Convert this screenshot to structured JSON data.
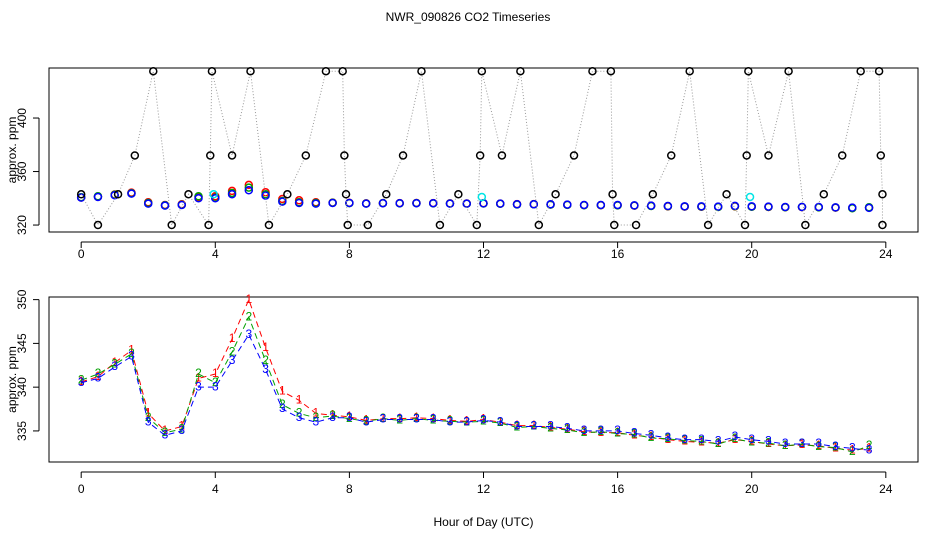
{
  "chart_data": [
    {
      "type": "scatter",
      "title": "NWR_090826  CO2 Timeseries",
      "ylabel": "approx. ppm",
      "xlim": [
        -0.96,
        24.96
      ],
      "xticks": [
        0,
        4,
        8,
        12,
        16,
        20,
        24
      ],
      "ylim": [
        314.8,
        437.4
      ],
      "yticks": [
        320,
        360,
        400
      ],
      "x": [
        0,
        0.5,
        1,
        1.5,
        2,
        2.5,
        3,
        3.5,
        4,
        4.5,
        5,
        5.5,
        6,
        6.5,
        7,
        7.5,
        8,
        8.5,
        9,
        9.5,
        10,
        10.5,
        11,
        11.5,
        12,
        12.5,
        13,
        13.5,
        14,
        14.5,
        15,
        15.5,
        16,
        16.5,
        17,
        17.5,
        18,
        18.5,
        19,
        19.5,
        20,
        20.5,
        21,
        21.5,
        22,
        22.5,
        23,
        23.5
      ],
      "series": [
        {
          "color": "#ff0000",
          "values": [
            340.6,
            341.2,
            342.8,
            344.2,
            337,
            335,
            335.5,
            341,
            341.5,
            345.5,
            350,
            344.5,
            339.5,
            338.5,
            337,
            336.8,
            336.6,
            336.2,
            336.4,
            336.4,
            336.5,
            336.4,
            336.2,
            336.1,
            336.3,
            336,
            335.6,
            335.6,
            335.4,
            335.2,
            334.9,
            334.8,
            334.8,
            334.5,
            334.3,
            334,
            333.8,
            333.7,
            333.6,
            334,
            333.8,
            333.5,
            333.3,
            333.4,
            333.3,
            333,
            332.8,
            333
          ]
        },
        {
          "color": "#00a000",
          "values": [
            340.8,
            341.5,
            342.6,
            343.8,
            336.5,
            334.8,
            335.2,
            341.5,
            340.5,
            344,
            348,
            343,
            338,
            337,
            336.5,
            336.7,
            336.4,
            336.1,
            336.4,
            336.2,
            336.4,
            336.2,
            336.1,
            336,
            336.1,
            335.9,
            335.4,
            335.5,
            335.3,
            335.1,
            334.8,
            334.9,
            334.7,
            334.6,
            334.2,
            334.1,
            333.9,
            333.8,
            333.5,
            334.1,
            333.7,
            333.6,
            333.3,
            333.5,
            333.2,
            333.1,
            332.6,
            333.3
          ]
        },
        {
          "color": "#0000ff",
          "values": [
            340.5,
            341,
            342.3,
            343.5,
            336,
            334.5,
            335,
            340,
            340,
            343,
            346,
            342,
            337.5,
            336.5,
            336,
            336.5,
            336.5,
            336,
            336.3,
            336.3,
            336.3,
            336.3,
            336,
            336,
            336.2,
            336,
            335.5,
            335.5,
            335.5,
            335.3,
            335,
            335,
            335,
            334.7,
            334.5,
            334.2,
            334,
            334,
            333.8,
            334.3,
            334,
            333.8,
            333.5,
            333.5,
            333.5,
            333.2,
            333,
            332.8
          ]
        },
        {
          "color": "#000000",
          "line_color": "#999999",
          "line_style": "dotted",
          "x": [
            0,
            0.5,
            1.1,
            1.6,
            2.15,
            2.7,
            3.2,
            3.8,
            3.85,
            3.9,
            4.5,
            5.05,
            5.6,
            6.15,
            6.7,
            7.3,
            7.8,
            7.85,
            7.9,
            7.95,
            8.55,
            9.1,
            9.6,
            10.15,
            10.7,
            11.25,
            11.8,
            11.9,
            11.95,
            12.55,
            13.1,
            13.65,
            14.15,
            14.7,
            15.25,
            15.8,
            15.85,
            15.9,
            16.55,
            17.05,
            17.6,
            18.15,
            18.7,
            19.25,
            19.8,
            19.85,
            19.9,
            20.5,
            21.1,
            21.6,
            22.15,
            22.7,
            23.25,
            23.8,
            23.85,
            23.9,
            23.9
          ],
          "values": [
            343,
            320,
            343,
            372,
            435,
            320,
            343,
            320,
            372,
            435,
            372,
            435,
            320,
            343,
            372,
            435,
            435,
            372,
            343,
            320,
            320,
            343,
            372,
            435,
            320,
            343,
            320,
            372,
            435,
            372,
            435,
            320,
            343,
            372,
            435,
            435,
            343,
            320,
            320,
            343,
            372,
            435,
            320,
            343,
            320,
            372,
            435,
            372,
            435,
            320,
            343,
            372,
            435,
            435,
            372,
            343,
            320
          ]
        },
        {
          "color": "#00e5e5",
          "x": [
            3.95,
            11.95,
            19.95
          ],
          "values": [
            343,
            341,
            341
          ]
        }
      ]
    },
    {
      "type": "line",
      "ylabel": "approx. ppm",
      "xlabel": "Hour of Day (UTC)",
      "xlim": [
        -0.96,
        24.96
      ],
      "xticks": [
        0,
        4,
        8,
        12,
        16,
        20,
        24
      ],
      "ylim": [
        331.45,
        350.3
      ],
      "yticks": [
        335,
        340,
        345,
        350
      ],
      "x": [
        0,
        0.5,
        1,
        1.5,
        2,
        2.5,
        3,
        3.5,
        4,
        4.5,
        5,
        5.5,
        6,
        6.5,
        7,
        7.5,
        8,
        8.5,
        9,
        9.5,
        10,
        10.5,
        11,
        11.5,
        12,
        12.5,
        13,
        13.5,
        14,
        14.5,
        15,
        15.5,
        16,
        16.5,
        17,
        17.5,
        18,
        18.5,
        19,
        19.5,
        20,
        20.5,
        21,
        21.5,
        22,
        22.5,
        23,
        23.5
      ],
      "series": [
        {
          "symbol": "1",
          "color": "#ff0000",
          "values": [
            340.6,
            341.2,
            342.8,
            344.2,
            337,
            335,
            335.5,
            341,
            341.5,
            345.5,
            350,
            344.5,
            339.5,
            338.5,
            337,
            336.8,
            336.6,
            336.2,
            336.4,
            336.4,
            336.5,
            336.4,
            336.2,
            336.1,
            336.3,
            336,
            335.6,
            335.6,
            335.4,
            335.2,
            334.9,
            334.8,
            334.8,
            334.5,
            334.3,
            334,
            333.8,
            333.7,
            333.6,
            334,
            333.8,
            333.5,
            333.3,
            333.4,
            333.3,
            333,
            332.8,
            333
          ]
        },
        {
          "symbol": "2",
          "color": "#00a000",
          "values": [
            340.8,
            341.5,
            342.6,
            343.8,
            336.5,
            334.8,
            335.2,
            341.5,
            340.5,
            344,
            348,
            343,
            338,
            337,
            336.5,
            336.7,
            336.4,
            336.1,
            336.4,
            336.2,
            336.4,
            336.2,
            336.1,
            336,
            336.1,
            335.9,
            335.4,
            335.5,
            335.3,
            335.1,
            334.8,
            334.9,
            334.7,
            334.6,
            334.2,
            334.1,
            333.9,
            333.8,
            333.5,
            334.1,
            333.7,
            333.6,
            333.3,
            333.5,
            333.2,
            333.1,
            332.6,
            333.3
          ]
        },
        {
          "symbol": "3",
          "color": "#0000ff",
          "values": [
            340.5,
            341,
            342.3,
            343.5,
            336,
            334.5,
            335,
            340,
            340,
            343,
            346,
            342,
            337.5,
            336.5,
            336,
            336.5,
            336.5,
            336,
            336.3,
            336.3,
            336.3,
            336.3,
            336,
            336,
            336.2,
            336,
            335.5,
            335.5,
            335.5,
            335.3,
            335,
            335,
            335,
            334.7,
            334.5,
            334.2,
            334,
            334,
            333.8,
            334.3,
            334,
            333.8,
            333.5,
            333.5,
            333.5,
            333.2,
            333,
            332.8
          ]
        }
      ]
    }
  ]
}
